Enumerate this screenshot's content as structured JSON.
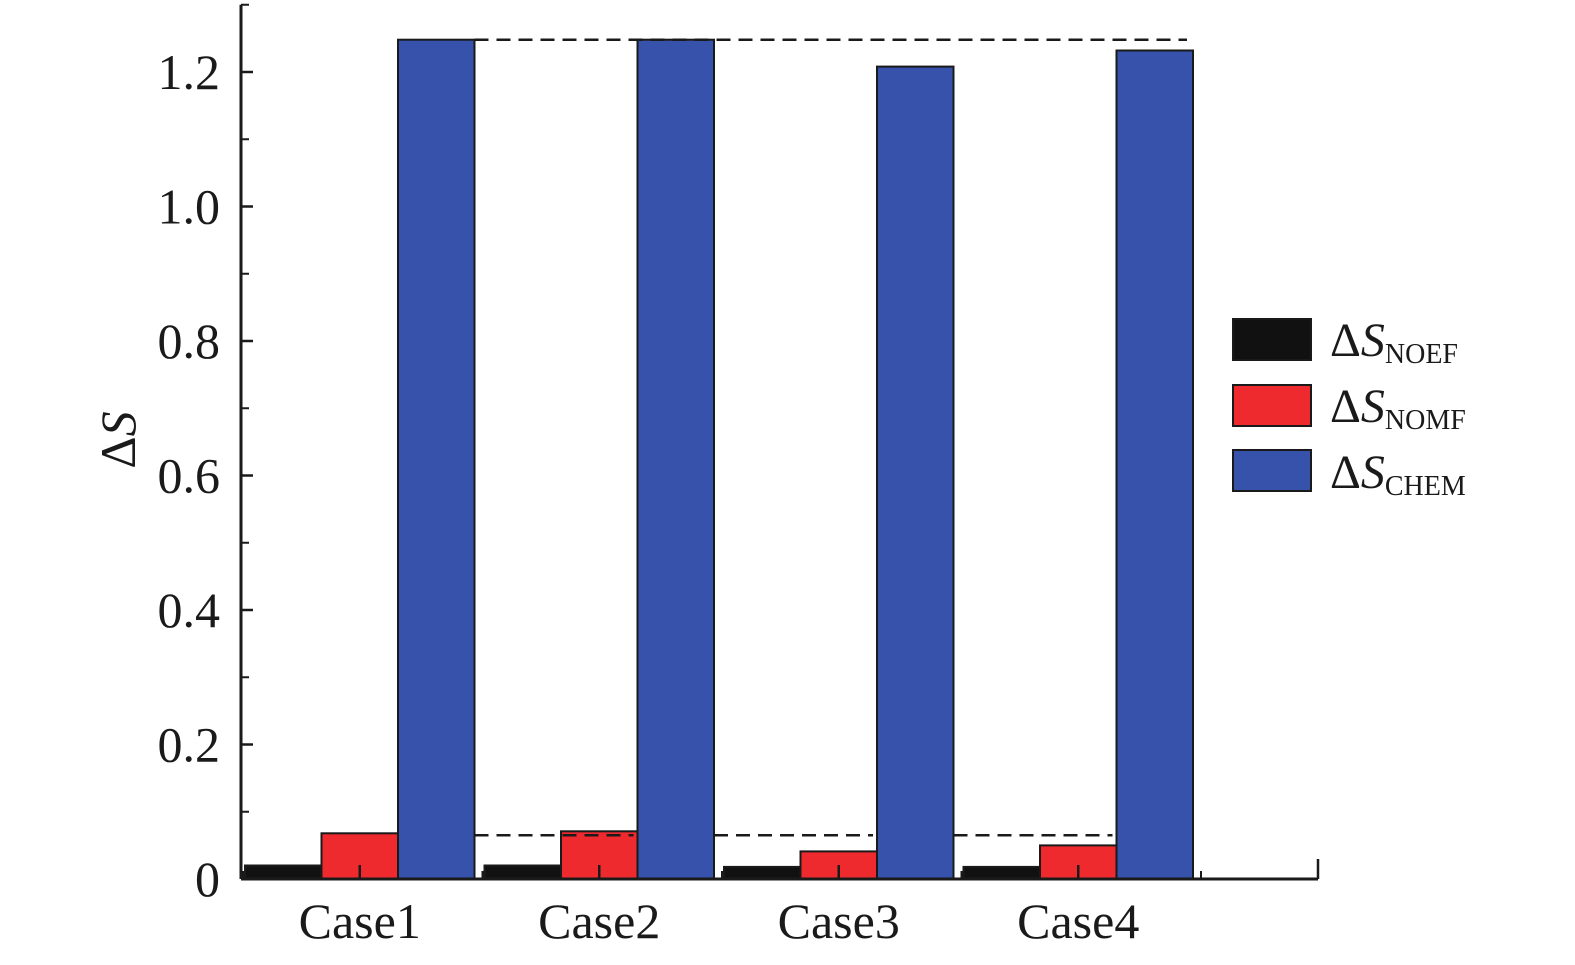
{
  "chart_data": {
    "type": "bar",
    "title": "",
    "xlabel": "",
    "ylabel": {
      "delta": "Δ",
      "symbol": "S"
    },
    "ylim": [
      0,
      1.3
    ],
    "yticks": [
      {
        "value": 0,
        "label": "0"
      },
      {
        "value": 0.2,
        "label": "0.2"
      },
      {
        "value": 0.4,
        "label": "0.4"
      },
      {
        "value": 0.6,
        "label": "0.6"
      },
      {
        "value": 0.8,
        "label": "0.8"
      },
      {
        "value": 1.0,
        "label": "1.0"
      },
      {
        "value": 1.2,
        "label": "1.2"
      }
    ],
    "categories": [
      "Case1",
      "Case2",
      "Case3",
      "Case4"
    ],
    "series": [
      {
        "name": "NOEF",
        "legend": {
          "delta": "Δ",
          "symbol": "S",
          "sub": "NOEF"
        },
        "color": "#111111",
        "values": [
          0.02,
          0.02,
          0.018,
          0.018
        ]
      },
      {
        "name": "NOMF",
        "legend": {
          "delta": "Δ",
          "symbol": "S",
          "sub": "NOMF"
        },
        "color": "#ee2a2e",
        "values": [
          0.068,
          0.071,
          0.041,
          0.05
        ]
      },
      {
        "name": "CHEM",
        "legend": {
          "delta": "Δ",
          "symbol": "S",
          "sub": "CHEM"
        },
        "color": "#3652ab",
        "values": [
          1.248,
          1.248,
          1.208,
          1.232
        ]
      }
    ],
    "reference_lines": [
      {
        "value": 1.248,
        "style": "dashed"
      },
      {
        "value": 0.065,
        "style": "dashed"
      }
    ],
    "legend_position": "right",
    "grid": false
  }
}
